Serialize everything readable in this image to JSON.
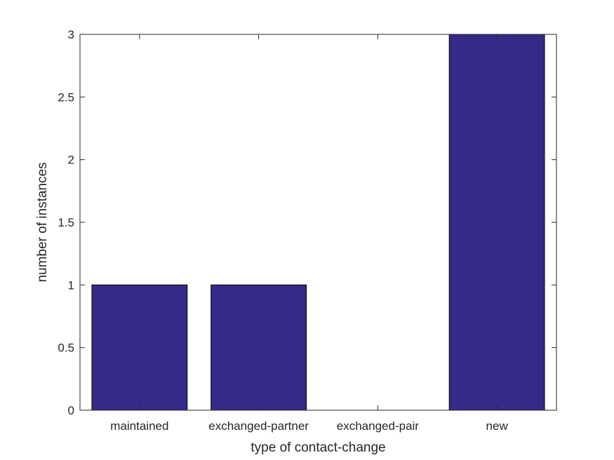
{
  "chart_data": {
    "type": "bar",
    "title": "",
    "xlabel": "type of contact-change",
    "ylabel": "number of instances",
    "categories": [
      "maintained",
      "exchanged-partner",
      "exchanged-pair",
      "new"
    ],
    "values": [
      1,
      1,
      0,
      3
    ],
    "ylim": [
      0,
      3
    ],
    "yticks": [
      "0",
      "0.5",
      "1",
      "1.5",
      "2",
      "2.5",
      "3"
    ],
    "grid": false,
    "bar_color": "#352a87",
    "axis_color": "#262626"
  }
}
